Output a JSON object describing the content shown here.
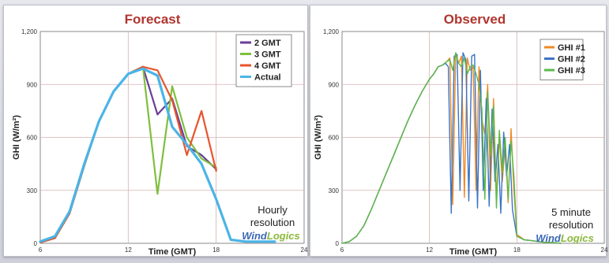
{
  "chart_data": [
    {
      "type": "line",
      "title": "Forecast",
      "xlabel": "Time (GMT)",
      "ylabel": "GHI (W/m²)",
      "xlim": [
        6,
        24
      ],
      "ylim": [
        0,
        1200
      ],
      "xticks": [
        "6",
        "12",
        "18",
        "24"
      ],
      "yticks": [
        "0",
        "300",
        "600",
        "900",
        "1,200"
      ],
      "grid": true,
      "legend": "top-right",
      "series": [
        {
          "name": "2 GMT",
          "color": "#6a3d9a",
          "width": 2.2,
          "x": [
            6,
            7,
            8,
            9,
            10,
            11,
            12,
            13,
            14,
            15,
            16,
            17,
            18
          ],
          "y": [
            5,
            30,
            170,
            440,
            690,
            860,
            960,
            1000,
            730,
            820,
            550,
            500,
            420
          ]
        },
        {
          "name": "3 GMT",
          "color": "#7fbf3f",
          "width": 2.2,
          "x": [
            6,
            7,
            8,
            9,
            10,
            11,
            12,
            13,
            14,
            15,
            16,
            17,
            18
          ],
          "y": [
            5,
            30,
            170,
            440,
            690,
            860,
            960,
            1000,
            280,
            890,
            600,
            480,
            430
          ]
        },
        {
          "name": "4 GMT",
          "color": "#e8542c",
          "width": 2.2,
          "x": [
            6,
            7,
            8,
            9,
            10,
            11,
            12,
            13,
            14,
            15,
            16,
            17,
            18
          ],
          "y": [
            5,
            30,
            170,
            440,
            690,
            860,
            960,
            1000,
            980,
            810,
            500,
            750,
            410
          ]
        },
        {
          "name": "Actual",
          "color": "#4bb4e6",
          "width": 3.2,
          "x": [
            6,
            7,
            8,
            9,
            10,
            11,
            12,
            13,
            14,
            15,
            16,
            17,
            18,
            19,
            20,
            21,
            22
          ],
          "y": [
            10,
            40,
            180,
            450,
            690,
            860,
            960,
            990,
            950,
            660,
            560,
            450,
            250,
            20,
            10,
            10,
            10
          ]
        }
      ],
      "annotation": [
        "Hourly",
        "resolution"
      ],
      "brand": [
        "Wind",
        "Logics"
      ]
    },
    {
      "type": "line",
      "title": "Observed",
      "xlabel": "Time (GMT)",
      "ylabel": "GHI (W/m²)",
      "xlim": [
        6,
        24
      ],
      "ylim": [
        0,
        1200
      ],
      "xticks": [
        "6",
        "12",
        "18",
        "24"
      ],
      "yticks": [
        "0",
        "300",
        "600",
        "900",
        "1,200"
      ],
      "grid": true,
      "legend": "top-right",
      "series": [
        {
          "name": "GHI #1",
          "color": "#f08a24",
          "width": 1.4,
          "x": [
            6,
            6.5,
            7,
            7.5,
            8,
            8.5,
            9,
            9.5,
            10,
            10.5,
            11,
            11.5,
            12,
            12.3,
            12.6,
            12.9,
            13.2,
            13.4,
            13.6,
            13.8,
            14.0,
            14.2,
            14.4,
            14.6,
            14.8,
            15.0,
            15.2,
            15.4,
            15.6,
            15.8,
            16.0,
            16.2,
            16.4,
            16.6,
            16.8,
            17.0,
            17.2,
            17.4,
            17.6,
            17.8,
            18,
            18.5,
            19,
            19.5,
            20,
            20.5,
            21
          ],
          "y": [
            0,
            10,
            40,
            100,
            190,
            290,
            390,
            490,
            590,
            690,
            780,
            860,
            930,
            960,
            1000,
            1010,
            1030,
            1050,
            220,
            1070,
            1020,
            1060,
            260,
            1050,
            980,
            1000,
            300,
            1000,
            700,
            620,
            900,
            300,
            820,
            260,
            600,
            350,
            560,
            230,
            650,
            300,
            50,
            20,
            15,
            10,
            5,
            5,
            0
          ]
        },
        {
          "name": "GHI #2",
          "color": "#3c74c6",
          "width": 1.4,
          "x": [
            6,
            6.5,
            7,
            7.5,
            8,
            8.5,
            9,
            9.5,
            10,
            10.5,
            11,
            11.5,
            12,
            12.3,
            12.6,
            12.9,
            13.1,
            13.3,
            13.5,
            13.7,
            13.9,
            14.1,
            14.3,
            14.5,
            14.7,
            14.9,
            15.1,
            15.3,
            15.5,
            15.7,
            15.9,
            16.1,
            16.3,
            16.5,
            16.7,
            16.9,
            17.1,
            17.3,
            17.5,
            17.7,
            18,
            18.5,
            19,
            19.5,
            20,
            20.5,
            21
          ],
          "y": [
            0,
            10,
            40,
            100,
            190,
            290,
            390,
            490,
            590,
            690,
            780,
            860,
            930,
            960,
            1000,
            1010,
            1020,
            1000,
            170,
            1060,
            1070,
            300,
            1080,
            1040,
            240,
            1060,
            1070,
            200,
            980,
            300,
            820,
            210,
            760,
            350,
            560,
            170,
            630,
            380,
            560,
            190,
            40,
            20,
            15,
            10,
            5,
            5,
            0
          ]
        },
        {
          "name": "GHI #3",
          "color": "#5cb94a",
          "width": 1.4,
          "x": [
            6,
            6.5,
            7,
            7.5,
            8,
            8.5,
            9,
            9.5,
            10,
            10.5,
            11,
            11.5,
            12,
            12.3,
            12.6,
            12.9,
            13.2,
            13.4,
            13.6,
            13.8,
            14.0,
            14.2,
            14.4,
            14.6,
            14.8,
            15.0,
            15.2,
            15.4,
            15.6,
            15.8,
            16.0,
            16.2,
            16.4,
            16.6,
            16.8,
            17.0,
            17.2,
            17.4,
            17.6,
            17.8,
            18,
            18.5,
            19,
            19.5,
            20,
            20.5,
            21
          ],
          "y": [
            0,
            10,
            40,
            100,
            190,
            290,
            390,
            490,
            590,
            690,
            780,
            860,
            930,
            960,
            1000,
            1010,
            1030,
            1040,
            980,
            1080,
            1020,
            1000,
            1050,
            960,
            1000,
            1010,
            960,
            900,
            760,
            250,
            860,
            500,
            780,
            200,
            640,
            400,
            600,
            250,
            580,
            380,
            40,
            20,
            15,
            10,
            5,
            5,
            0
          ]
        }
      ],
      "annotation": [
        "5 minute",
        "resolution"
      ],
      "brand": [
        "Wind",
        "Logics"
      ]
    }
  ]
}
